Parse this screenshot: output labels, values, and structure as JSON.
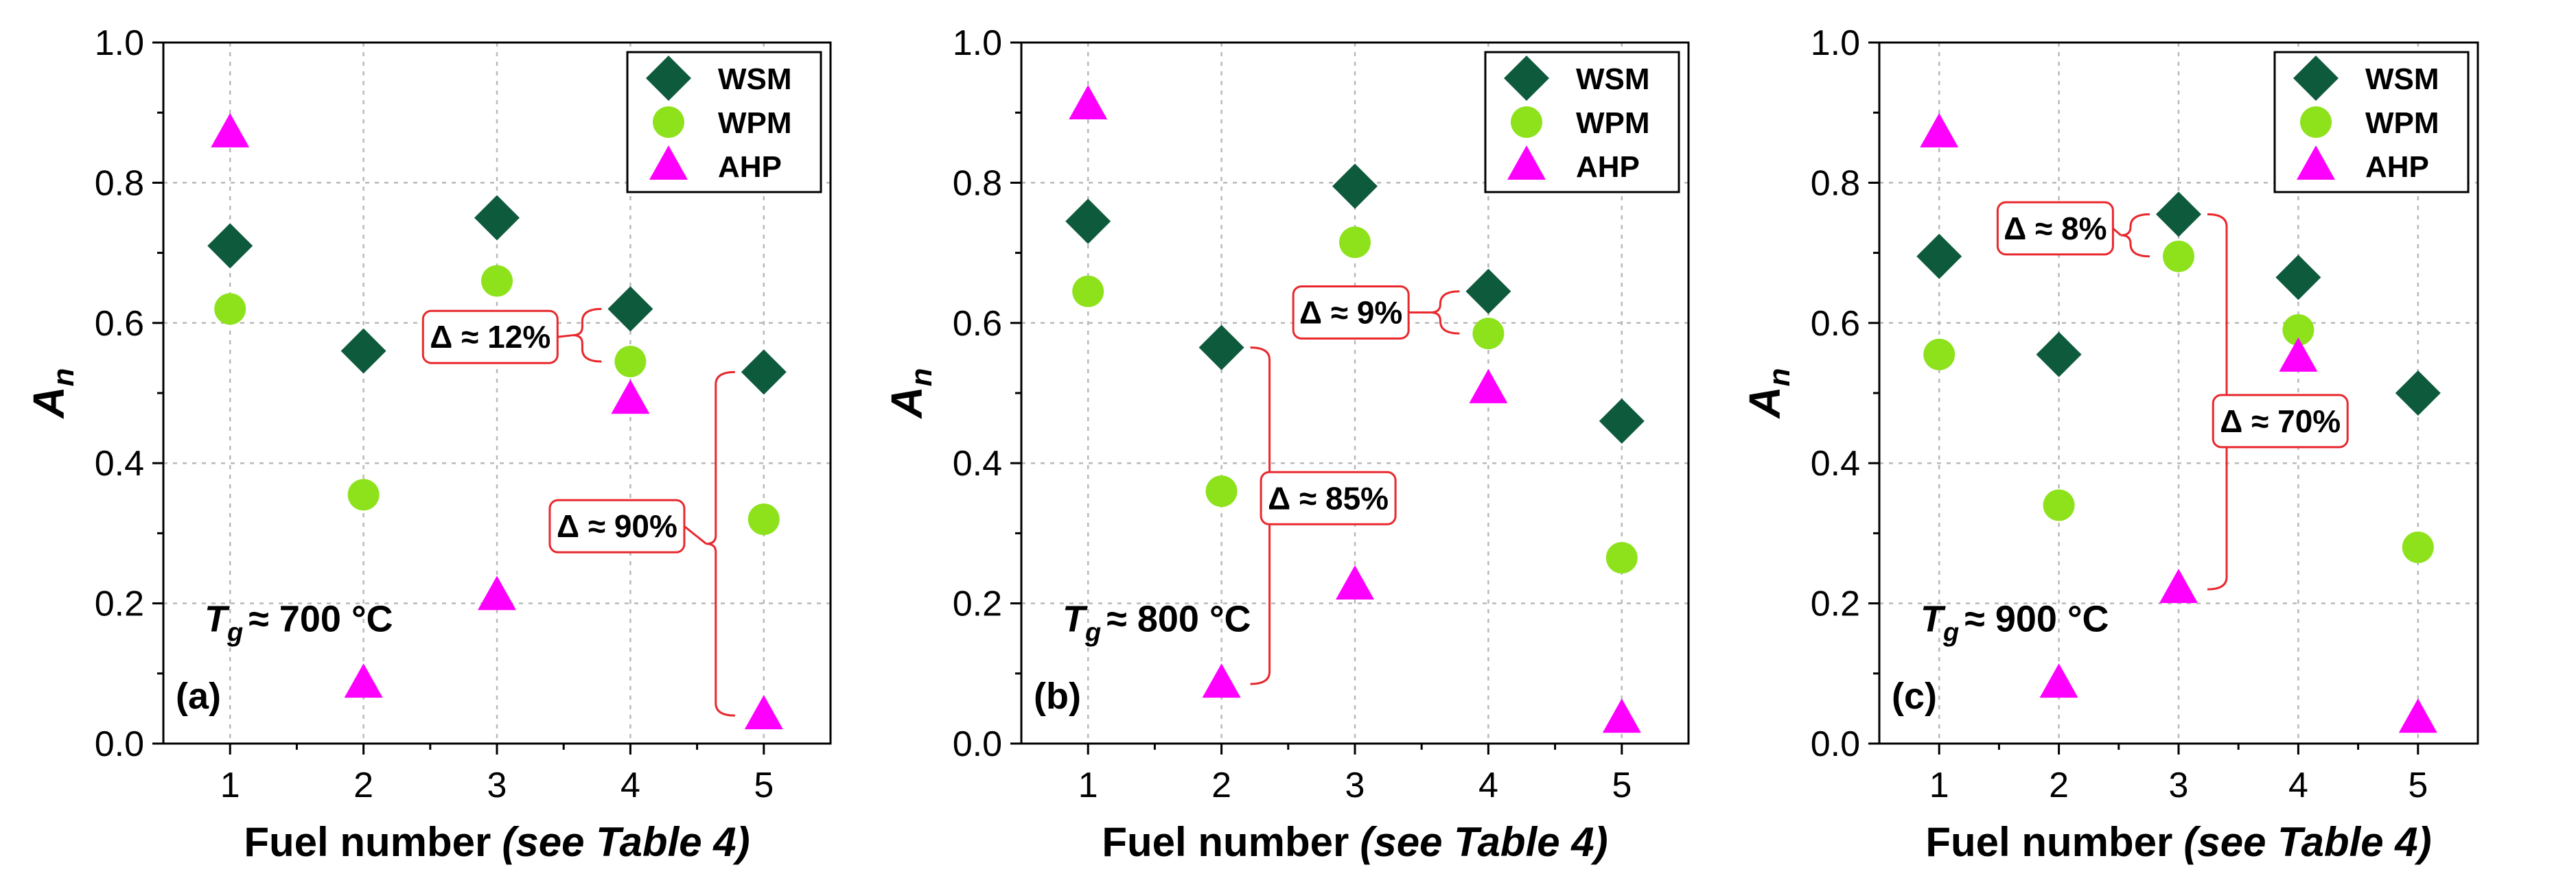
{
  "colors": {
    "WSM": "#0e5a3c",
    "WPM": "#8ee21c",
    "AHP": "#ff00ff",
    "annotation": "#e8282d",
    "grid": "#b9b9b9"
  },
  "chart_data": [
    {
      "type": "scatter",
      "panel_label": "(a)",
      "temp_prefix": "≈ 700 °C",
      "xlabel": "Fuel number",
      "xlabel_note": "(see Table 4)",
      "ylabel": "A",
      "ylabel_sub": "n",
      "xlim": [
        0.5,
        5.5
      ],
      "ylim": [
        0,
        1.0
      ],
      "x": [
        1,
        2,
        3,
        4,
        5
      ],
      "xticks": [
        "1",
        "2",
        "3",
        "4",
        "5"
      ],
      "yticks": [
        "0.0",
        "0.2",
        "0.4",
        "0.6",
        "0.8",
        "1.0"
      ],
      "legend_position": "top-right",
      "series": [
        {
          "name": "WSM",
          "marker": "diamond",
          "values": [
            0.71,
            0.56,
            0.75,
            0.62,
            0.53
          ]
        },
        {
          "name": "WPM",
          "marker": "circle",
          "values": [
            0.62,
            0.355,
            0.66,
            0.545,
            0.32
          ]
        },
        {
          "name": "AHP",
          "marker": "triangle",
          "values": [
            0.87,
            0.085,
            0.21,
            0.49,
            0.04
          ]
        }
      ],
      "annotations": [
        {
          "text": "Δ ≈ 12%",
          "at_x": 4,
          "from": 0.545,
          "to": 0.62,
          "side": "left",
          "label_x": 2.95,
          "label_y": 0.58
        },
        {
          "text": "Δ ≈ 90%",
          "at_x": 5,
          "from": 0.04,
          "to": 0.53,
          "side": "left",
          "label_x": 3.9,
          "label_y": 0.31
        }
      ]
    },
    {
      "type": "scatter",
      "panel_label": "(b)",
      "temp_prefix": "≈ 800 °C",
      "xlabel": "Fuel number",
      "xlabel_note": "(see Table 4)",
      "ylabel": "A",
      "ylabel_sub": "n",
      "xlim": [
        0.5,
        5.5
      ],
      "ylim": [
        0,
        1.0
      ],
      "x": [
        1,
        2,
        3,
        4,
        5
      ],
      "xticks": [
        "1",
        "2",
        "3",
        "4",
        "5"
      ],
      "yticks": [
        "0.0",
        "0.2",
        "0.4",
        "0.6",
        "0.8",
        "1.0"
      ],
      "legend_position": "top-right",
      "series": [
        {
          "name": "WSM",
          "marker": "diamond",
          "values": [
            0.745,
            0.565,
            0.795,
            0.645,
            0.46
          ]
        },
        {
          "name": "WPM",
          "marker": "circle",
          "values": [
            0.645,
            0.36,
            0.715,
            0.585,
            0.265
          ]
        },
        {
          "name": "AHP",
          "marker": "triangle",
          "values": [
            0.91,
            0.085,
            0.225,
            0.505,
            0.035
          ]
        }
      ],
      "annotations": [
        {
          "text": "Δ ≈ 9%",
          "at_x": 4,
          "from": 0.585,
          "to": 0.645,
          "side": "left",
          "label_x": 2.97,
          "label_y": 0.615
        },
        {
          "text": "Δ ≈ 85%",
          "at_x": 2,
          "from": 0.085,
          "to": 0.565,
          "side": "right",
          "label_x": 2.8,
          "label_y": 0.35
        }
      ]
    },
    {
      "type": "scatter",
      "panel_label": "(c)",
      "temp_prefix": "≈ 900 °C",
      "xlabel": "Fuel number",
      "xlabel_note": "(see Table 4)",
      "ylabel": "A",
      "ylabel_sub": "n",
      "xlim": [
        0.5,
        5.5
      ],
      "ylim": [
        0,
        1.0
      ],
      "x": [
        1,
        2,
        3,
        4,
        5
      ],
      "xticks": [
        "1",
        "2",
        "3",
        "4",
        "5"
      ],
      "yticks": [
        "0.0",
        "0.2",
        "0.4",
        "0.6",
        "0.8",
        "1.0"
      ],
      "legend_position": "top-right",
      "series": [
        {
          "name": "WSM",
          "marker": "diamond",
          "values": [
            0.695,
            0.555,
            0.755,
            0.665,
            0.5
          ]
        },
        {
          "name": "WPM",
          "marker": "circle",
          "values": [
            0.555,
            0.34,
            0.695,
            0.59,
            0.28
          ]
        },
        {
          "name": "AHP",
          "marker": "triangle",
          "values": [
            0.87,
            0.085,
            0.22,
            0.55,
            0.035
          ]
        }
      ],
      "annotations": [
        {
          "text": "Δ ≈ 8%",
          "at_x": 3,
          "from": 0.695,
          "to": 0.755,
          "side": "left",
          "label_x": 1.97,
          "label_y": 0.735
        },
        {
          "text": "Δ ≈ 70%",
          "at_x": 3,
          "from": 0.22,
          "to": 0.755,
          "side": "right",
          "label_x": 3.85,
          "label_y": 0.46
        }
      ]
    }
  ]
}
